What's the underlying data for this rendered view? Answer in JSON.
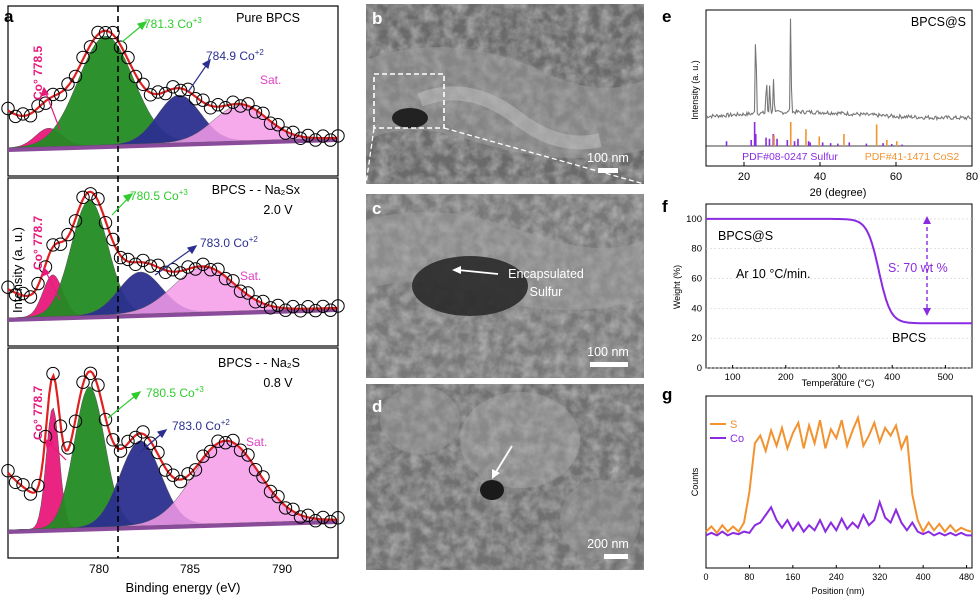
{
  "panel_letters": [
    "a",
    "b",
    "c",
    "d",
    "e",
    "f",
    "g"
  ],
  "colors": {
    "co0": "#e8197a",
    "co3": "#228b22",
    "co2": "#2b2f8f",
    "sat": "#f59be8",
    "fit": "#e02020",
    "ann_green": "#2ecc2e",
    "ann_navy": "#2b2f8f",
    "ann_pink": "#e040c0",
    "sulfur": "#8a2be2",
    "cos2": "#f29330",
    "xrd_grey": "#777777",
    "tga_line": "#8a2be2"
  },
  "panel_a": {
    "ylabel": "Intensity (a. u.)",
    "xlabel": "Binding energy (eV)",
    "x_ticks": [
      "780",
      "785",
      "790"
    ],
    "xlim": [
      776.5,
      792.7
    ],
    "dashed_x": 781.3,
    "subpanels": [
      {
        "title_line1": "Pure BPCS",
        "title_line2": "",
        "co0": "Co° 778.5",
        "co3": "781.3 Co",
        "co3_sup": "+3",
        "co2": "784.9 Co",
        "co2_sup": "+2",
        "sat": "Sat."
      },
      {
        "title_line1": "BPCS - - Na₂Sx",
        "title_line2": "2.0 V",
        "co0": "Co° 778.7",
        "co3": "780.5 Co",
        "co3_sup": "+3",
        "co2": "783.0 Co",
        "co2_sup": "+2",
        "sat": "Sat."
      },
      {
        "title_line1": "BPCS - - Na₂S",
        "title_line2": "0.8 V",
        "co0": "Co° 778.7",
        "co3": "780.5 Co",
        "co3_sup": "+3",
        "co2": "783.0 Co",
        "co2_sup": "+2",
        "sat": "Sat."
      }
    ]
  },
  "panel_b": {
    "scale": "100 nm"
  },
  "panel_c": {
    "scale": "100 nm",
    "annotation_line1": "Encapsulated",
    "annotation_line2": "Sulfur"
  },
  "panel_d": {
    "scale": "200 nm"
  },
  "chart_data": [
    {
      "type": "line",
      "panel": "a",
      "xlabel": "Binding energy (eV)",
      "ylabel": "Intensity (a. u.)",
      "xlim": [
        776.5,
        792.7
      ],
      "subplots": [
        {
          "name": "Pure BPCS",
          "peaks": [
            {
              "label": "Co° 778.5",
              "center": 778.5,
              "amp": 0.14,
              "width": 0.65
            },
            {
              "label": "781.3 Co+3",
              "center": 781.3,
              "amp": 0.82,
              "width": 1.35
            },
            {
              "label": "784.9 Co+2",
              "center": 784.9,
              "amp": 0.36,
              "width": 1.05
            },
            {
              "label": "Sat.",
              "center": 787.9,
              "amp": 0.27,
              "width": 1.3
            }
          ]
        },
        {
          "name": "BPCS - - Na2Sx 2.0 V",
          "peaks": [
            {
              "label": "Co° 778.7",
              "center": 778.7,
              "amp": 0.32,
              "width": 0.48
            },
            {
              "label": "780.5 Co+3",
              "center": 780.5,
              "amp": 0.88,
              "width": 0.9
            },
            {
              "label": "783.0 Co+2",
              "center": 783.0,
              "amp": 0.32,
              "width": 1.05
            },
            {
              "label": "Sat.",
              "center": 786.1,
              "amp": 0.34,
              "width": 1.5
            }
          ]
        },
        {
          "name": "BPCS - - Na2S 0.8 V",
          "peaks": [
            {
              "label": "Co° 778.7",
              "center": 778.7,
              "amp": 0.74,
              "width": 0.32
            },
            {
              "label": "780.5 Co+3",
              "center": 780.5,
              "amp": 0.86,
              "width": 0.75
            },
            {
              "label": "783.0 Co+2",
              "center": 783.0,
              "amp": 0.52,
              "width": 1.0
            },
            {
              "label": "Sat.",
              "center": 787.2,
              "amp": 0.5,
              "width": 1.6
            }
          ]
        }
      ]
    },
    {
      "type": "bar",
      "panel": "e",
      "title": "BPCS@S",
      "xlabel": "2θ (degree)",
      "ylabel": "Intensity (a. u.)",
      "xlim": [
        10,
        80
      ],
      "x_ticks": [
        20,
        40,
        60,
        80
      ],
      "series": [
        {
          "name": "PDF#08-0247 Sulfur",
          "x": [
            15.4,
            21.9,
            22.8,
            23.1,
            25.8,
            26.7,
            27.7,
            28.7,
            31.4,
            33.3,
            34.2,
            37.0,
            37.4,
            40.7,
            42.8,
            44.7,
            47.7,
            52.2,
            56.6,
            58.9,
            61.6
          ],
          "values": [
            0.2,
            0.25,
            1.0,
            0.5,
            0.35,
            0.3,
            0.5,
            0.3,
            0.25,
            0.2,
            0.3,
            0.2,
            0.15,
            0.15,
            0.12,
            0.1,
            0.15,
            0.1,
            0.12,
            0.08,
            0.06
          ]
        },
        {
          "name": "PDF#41-1471 CoS2",
          "x": [
            27.9,
            32.3,
            36.3,
            39.8,
            46.3,
            54.9,
            57.6,
            60.2
          ],
          "values": [
            0.45,
            1.0,
            0.7,
            0.4,
            0.5,
            0.9,
            0.25,
            0.2
          ]
        }
      ],
      "main_peaks": [
        {
          "x": 23.1,
          "rel": 1.0
        },
        {
          "x": 32.3,
          "rel": 1.0
        },
        {
          "x": 25.9,
          "rel": 0.4
        },
        {
          "x": 27.8,
          "rel": 0.38
        },
        {
          "x": 26.8,
          "rel": 0.3
        }
      ]
    },
    {
      "type": "line",
      "panel": "f",
      "xlabel": "Temperature (°C)",
      "ylabel": "Weight (%)",
      "xlim": [
        50,
        550
      ],
      "ylim": [
        0,
        110
      ],
      "x_ticks": [
        100,
        200,
        300,
        400,
        500
      ],
      "y_ticks": [
        0,
        20,
        40,
        60,
        80,
        100
      ],
      "series": [
        {
          "name": "BPCS@S",
          "x": [
            50,
            200,
            300,
            340,
            360,
            380,
            395,
            410,
            550
          ],
          "y": [
            100,
            100,
            98,
            94,
            85,
            65,
            40,
            30,
            30
          ]
        }
      ],
      "annotations": {
        "sample": "BPCS@S",
        "condition": "Ar 10 °C/min.",
        "loss": "S: 70 wt %",
        "residue": "BPCS"
      }
    },
    {
      "type": "line",
      "panel": "g",
      "xlabel": "Position (nm)",
      "ylabel": "Counts",
      "xlim": [
        0,
        490
      ],
      "x_ticks": [
        0,
        80,
        160,
        240,
        320,
        400,
        480
      ],
      "series": [
        {
          "name": "S",
          "x": [
            0,
            10,
            20,
            30,
            40,
            50,
            60,
            70,
            80,
            90,
            100,
            110,
            120,
            130,
            140,
            150,
            160,
            170,
            180,
            190,
            200,
            210,
            220,
            230,
            240,
            250,
            260,
            270,
            280,
            290,
            300,
            310,
            320,
            330,
            340,
            350,
            360,
            370,
            380,
            390,
            400,
            410,
            420,
            430,
            440,
            450,
            460,
            470,
            480,
            490
          ],
          "y": [
            0.05,
            0.09,
            0.04,
            0.1,
            0.05,
            0.09,
            0.05,
            0.12,
            0.36,
            0.74,
            0.8,
            0.68,
            0.84,
            0.72,
            0.86,
            0.7,
            0.82,
            0.9,
            0.7,
            0.88,
            0.74,
            0.92,
            0.7,
            0.85,
            0.78,
            0.92,
            0.72,
            0.84,
            0.94,
            0.72,
            0.8,
            0.9,
            0.75,
            0.86,
            0.8,
            0.88,
            0.7,
            0.8,
            0.34,
            0.14,
            0.05,
            0.12,
            0.06,
            0.11,
            0.05,
            0.1,
            0.05,
            0.08,
            0.06,
            0.05
          ]
        },
        {
          "name": "Co",
          "x": [
            0,
            10,
            20,
            30,
            40,
            50,
            60,
            70,
            80,
            90,
            100,
            110,
            120,
            130,
            140,
            150,
            160,
            170,
            180,
            190,
            200,
            210,
            220,
            230,
            240,
            250,
            260,
            270,
            280,
            290,
            300,
            310,
            320,
            330,
            340,
            350,
            360,
            370,
            380,
            390,
            400,
            410,
            420,
            430,
            440,
            450,
            460,
            470,
            480,
            490
          ],
          "y": [
            0.02,
            0.04,
            0.02,
            0.05,
            0.02,
            0.04,
            0.03,
            0.05,
            0.04,
            0.1,
            0.12,
            0.18,
            0.24,
            0.14,
            0.08,
            0.14,
            0.06,
            0.12,
            0.05,
            0.1,
            0.06,
            0.14,
            0.05,
            0.12,
            0.06,
            0.15,
            0.07,
            0.12,
            0.08,
            0.18,
            0.1,
            0.14,
            0.28,
            0.16,
            0.12,
            0.22,
            0.12,
            0.06,
            0.12,
            0.05,
            0.03,
            0.05,
            0.02,
            0.04,
            0.02,
            0.04,
            0.02,
            0.04,
            0.02,
            0.02
          ]
        }
      ]
    }
  ]
}
